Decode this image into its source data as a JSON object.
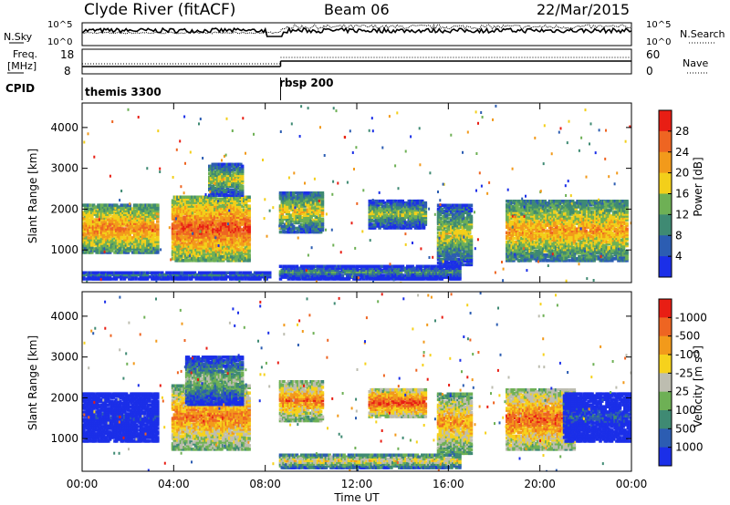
{
  "header": {
    "title": "Clyde River (fitACF)",
    "beam": "Beam 06",
    "date": "22/Mar/2015"
  },
  "noise_panel": {
    "left_label": "N.Sky",
    "right_label": "N.Search",
    "left_ticks": [
      "10^5",
      "10^0"
    ],
    "right_ticks": [
      "10^5",
      "10^0"
    ]
  },
  "freq_panel": {
    "left_label_1": "Freq.",
    "left_label_2": "[MHz]",
    "left_ticks": [
      "18",
      "8"
    ],
    "right_label": "Nave",
    "right_ticks": [
      "60",
      "0"
    ]
  },
  "cpid": {
    "label": "CPID",
    "modes": [
      {
        "name": "themis 3300",
        "start_hour": 0
      },
      {
        "name": "rbsp 200",
        "start_hour": 8.67
      }
    ]
  },
  "chart_data": [
    {
      "type": "heatmap",
      "ylabel": "Slant Range [km]",
      "xlabel": "Time UT",
      "x_ticks": [
        "00:00",
        "04:00",
        "08:00",
        "12:00",
        "16:00",
        "20:00",
        "00:00"
      ],
      "xlim_hours": [
        0,
        24
      ],
      "ylim": [
        200,
        4600
      ],
      "y_ticks": [
        1000,
        2000,
        3000,
        4000
      ],
      "colorbar_label": "Power [dB]",
      "colorbar_ticks": [
        "4",
        "8",
        "12",
        "16",
        "20",
        "24",
        "28"
      ],
      "colorbar_colors": [
        "#1b2fe8",
        "#2c5db2",
        "#3f8a73",
        "#6eb055",
        "#f3cf1a",
        "#f29a1b",
        "#ee6522",
        "#e81e14"
      ],
      "blobs": [
        {
          "t0": 0.0,
          "t1": 3.3,
          "r0": 900,
          "r1": 2100,
          "level": 0.75
        },
        {
          "t0": 3.9,
          "t1": 7.3,
          "r0": 700,
          "r1": 2300,
          "level": 0.85
        },
        {
          "t0": 5.5,
          "t1": 7.0,
          "r0": 2300,
          "r1": 3100,
          "level": 0.55
        },
        {
          "t0": 8.6,
          "t1": 10.5,
          "r0": 1400,
          "r1": 2400,
          "level": 0.6
        },
        {
          "t0": 12.5,
          "t1": 15.0,
          "r0": 1500,
          "r1": 2200,
          "level": 0.5
        },
        {
          "t0": 15.5,
          "t1": 17.0,
          "r0": 600,
          "r1": 2100,
          "level": 0.55
        },
        {
          "t0": 18.5,
          "t1": 23.8,
          "r0": 700,
          "r1": 2200,
          "level": 0.7
        },
        {
          "t0": 8.6,
          "t1": 16.5,
          "r0": 250,
          "r1": 600,
          "level": 0.35
        },
        {
          "t0": 0.0,
          "t1": 8.2,
          "r0": 250,
          "r1": 450,
          "level": 0.25
        }
      ]
    },
    {
      "type": "heatmap",
      "ylabel": "Slant Range [km]",
      "xlabel": "Time UT",
      "x_ticks": [
        "00:00",
        "04:00",
        "08:00",
        "12:00",
        "16:00",
        "20:00",
        "00:00"
      ],
      "xlim_hours": [
        0,
        24
      ],
      "ylim": [
        200,
        4600
      ],
      "y_ticks": [
        1000,
        2000,
        3000,
        4000
      ],
      "colorbar_label": "Velocity [m s^-1]",
      "colorbar_ticks": [
        "1000",
        "500",
        "100",
        "25",
        "-25",
        "-100",
        "-500",
        "-1000"
      ],
      "colorbar_colors": [
        "#1b2fe8",
        "#2c5db2",
        "#3f8a73",
        "#6eb055",
        "#bdbdb0",
        "#f6d21c",
        "#f29a1b",
        "#ee6522",
        "#e81e14"
      ],
      "blobs": [
        {
          "t0": 0.0,
          "t1": 3.3,
          "r0": 900,
          "r1": 2100,
          "level": 0.05
        },
        {
          "t0": 3.9,
          "t1": 7.3,
          "r0": 700,
          "r1": 2300,
          "level": 0.8
        },
        {
          "t0": 4.5,
          "t1": 7.0,
          "r0": 1800,
          "r1": 3000,
          "level": 0.45
        },
        {
          "t0": 8.6,
          "t1": 10.5,
          "r0": 1400,
          "r1": 2400,
          "level": 0.8
        },
        {
          "t0": 12.5,
          "t1": 15.0,
          "r0": 1500,
          "r1": 2200,
          "level": 0.9
        },
        {
          "t0": 15.5,
          "t1": 17.0,
          "r0": 600,
          "r1": 2100,
          "level": 0.75
        },
        {
          "t0": 18.5,
          "t1": 21.5,
          "r0": 700,
          "r1": 2200,
          "level": 0.85
        },
        {
          "t0": 21.0,
          "t1": 24.0,
          "r0": 900,
          "r1": 2100,
          "level": 0.15
        },
        {
          "t0": 8.6,
          "t1": 16.5,
          "r0": 250,
          "r1": 600,
          "level": 0.6
        }
      ]
    }
  ]
}
